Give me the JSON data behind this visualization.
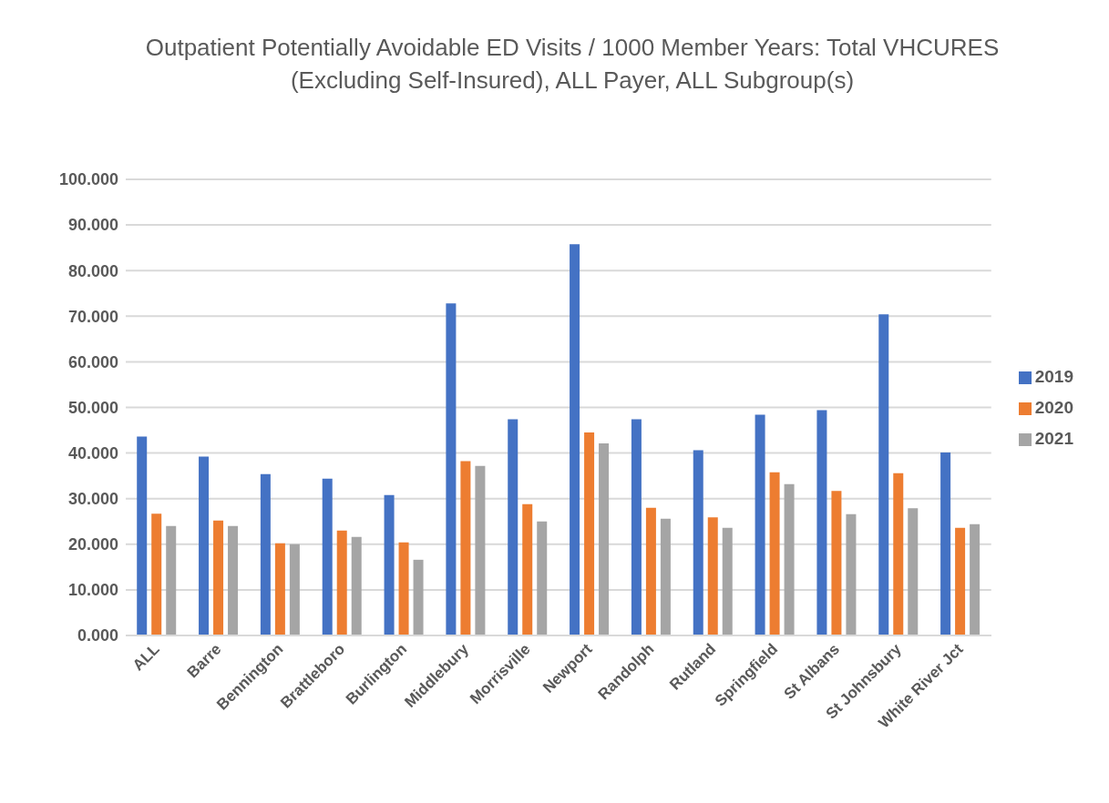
{
  "chart_data": {
    "type": "bar",
    "title": "Outpatient Potentially Avoidable ED Visits / 1000 Member Years: Total VHCURES (Excluding Self-Insured), ALL Payer, ALL Subgroup(s)",
    "categories": [
      "ALL",
      "Barre",
      "Bennington",
      "Brattleboro",
      "Burlington",
      "Middlebury",
      "Morrisville",
      "Newport",
      "Randolph",
      "Rutland",
      "Springfield",
      "St Albans",
      "St Johnsbury",
      "White River Jct"
    ],
    "series": [
      {
        "name": "2019",
        "color": "#4472c4",
        "values": [
          43.6,
          39.2,
          35.4,
          34.4,
          30.8,
          72.8,
          47.4,
          85.8,
          47.4,
          40.6,
          48.4,
          49.4,
          70.4,
          40.1
        ]
      },
      {
        "name": "2020",
        "color": "#ed7d31",
        "values": [
          26.7,
          25.2,
          20.2,
          23.0,
          20.4,
          38.2,
          28.8,
          44.5,
          28.0,
          25.9,
          35.8,
          31.7,
          35.6,
          23.6
        ]
      },
      {
        "name": "2021",
        "color": "#a5a5a5",
        "values": [
          24.0,
          24.0,
          20.0,
          21.6,
          16.6,
          37.2,
          25.0,
          42.1,
          25.6,
          23.6,
          33.2,
          26.6,
          27.9,
          24.4
        ]
      }
    ],
    "ylim": [
      0,
      100
    ],
    "yticks": [
      {
        "value": 0,
        "label": "0.000"
      },
      {
        "value": 10,
        "label": "10.000"
      },
      {
        "value": 20,
        "label": "20.000"
      },
      {
        "value": 30,
        "label": "30.000"
      },
      {
        "value": 40,
        "label": "40.000"
      },
      {
        "value": 50,
        "label": "50.000"
      },
      {
        "value": 60,
        "label": "60.000"
      },
      {
        "value": 70,
        "label": "70.000"
      },
      {
        "value": 80,
        "label": "80.000"
      },
      {
        "value": 90,
        "label": "90.000"
      },
      {
        "value": 100,
        "label": "100.000"
      }
    ],
    "grid": "y",
    "legend": "right"
  }
}
